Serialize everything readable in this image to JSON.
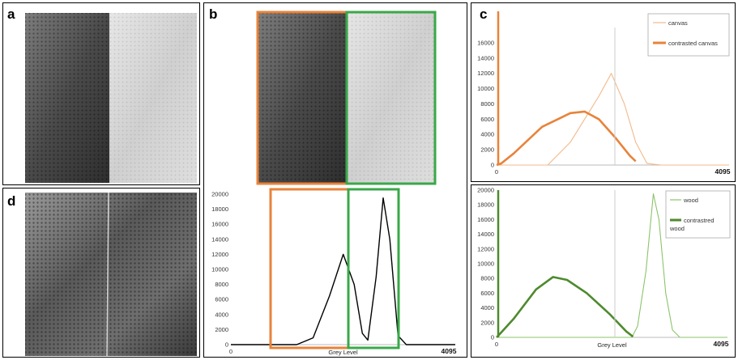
{
  "panels": {
    "a": "a",
    "b": "b",
    "c": "c",
    "d": "d"
  },
  "colors": {
    "orange": "#e8833a",
    "green": "#3aa84a",
    "dark_green": "#4e8a2e",
    "light_orange": "#f3b98a",
    "light_green": "#8cc46a"
  },
  "chart_data": [
    {
      "id": "b-histogram",
      "type": "line",
      "xlabel": "Grey Level",
      "x_ticks": [
        "0",
        "4095"
      ],
      "ylim": [
        0,
        20000
      ],
      "y_ticks": [
        0,
        2000,
        4000,
        6000,
        8000,
        10000,
        12000,
        14000,
        16000,
        18000,
        20000
      ],
      "series": [
        {
          "color": "#000000",
          "points": [
            [
              0,
              0
            ],
            [
              1200,
              0
            ],
            [
              1500,
              900
            ],
            [
              1800,
              6500
            ],
            [
              2050,
              12000
            ],
            [
              2250,
              8000
            ],
            [
              2400,
              1500
            ],
            [
              2500,
              600
            ],
            [
              2650,
              9000
            ],
            [
              2780,
              19500
            ],
            [
              2900,
              14000
            ],
            [
              3050,
              1200
            ],
            [
              3200,
              0
            ],
            [
              4095,
              0
            ]
          ]
        }
      ]
    },
    {
      "id": "c-histogram",
      "type": "line",
      "x_ticks": [
        "0",
        "4095"
      ],
      "ylim": [
        0,
        18000
      ],
      "y_ticks": [
        0,
        2000,
        4000,
        6000,
        8000,
        10000,
        12000,
        14000,
        16000
      ],
      "series": [
        {
          "name": "canvas",
          "color": "#f3b98a",
          "points": [
            [
              0,
              0
            ],
            [
              900,
              0
            ],
            [
              1300,
              3000
            ],
            [
              1800,
              9000
            ],
            [
              2020,
              12000
            ],
            [
              2250,
              8000
            ],
            [
              2450,
              3000
            ],
            [
              2650,
              200
            ],
            [
              2900,
              0
            ],
            [
              4095,
              0
            ]
          ]
        },
        {
          "name": "contrasted canvas",
          "color": "#e8833a",
          "points": [
            [
              0,
              0
            ],
            [
              80,
              200
            ],
            [
              300,
              1500
            ],
            [
              800,
              5000
            ],
            [
              1300,
              6800
            ],
            [
              1550,
              7000
            ],
            [
              1800,
              6000
            ],
            [
              2100,
              3500
            ],
            [
              2350,
              1200
            ],
            [
              2450,
              500
            ]
          ]
        }
      ]
    },
    {
      "id": "e-histogram",
      "type": "line",
      "xlabel": "Grey Level",
      "x_ticks": [
        "0",
        "4095"
      ],
      "ylim": [
        0,
        20000
      ],
      "y_ticks": [
        0,
        2000,
        4000,
        6000,
        8000,
        10000,
        12000,
        14000,
        16000,
        18000,
        20000
      ],
      "series": [
        {
          "name": "wood",
          "color": "#8cc46a",
          "points": [
            [
              0,
              0
            ],
            [
              2400,
              0
            ],
            [
              2500,
              1500
            ],
            [
              2650,
              9000
            ],
            [
              2780,
              19500
            ],
            [
              2880,
              16000
            ],
            [
              3000,
              6000
            ],
            [
              3120,
              1000
            ],
            [
              3250,
              0
            ],
            [
              4095,
              0
            ]
          ]
        },
        {
          "name": "contrastred wood",
          "color": "#4e8a2e",
          "points": [
            [
              0,
              0
            ],
            [
              50,
              400
            ],
            [
              300,
              2500
            ],
            [
              700,
              6500
            ],
            [
              1000,
              8200
            ],
            [
              1250,
              7800
            ],
            [
              1600,
              6000
            ],
            [
              2000,
              3200
            ],
            [
              2300,
              800
            ],
            [
              2420,
              100
            ]
          ]
        }
      ]
    }
  ]
}
